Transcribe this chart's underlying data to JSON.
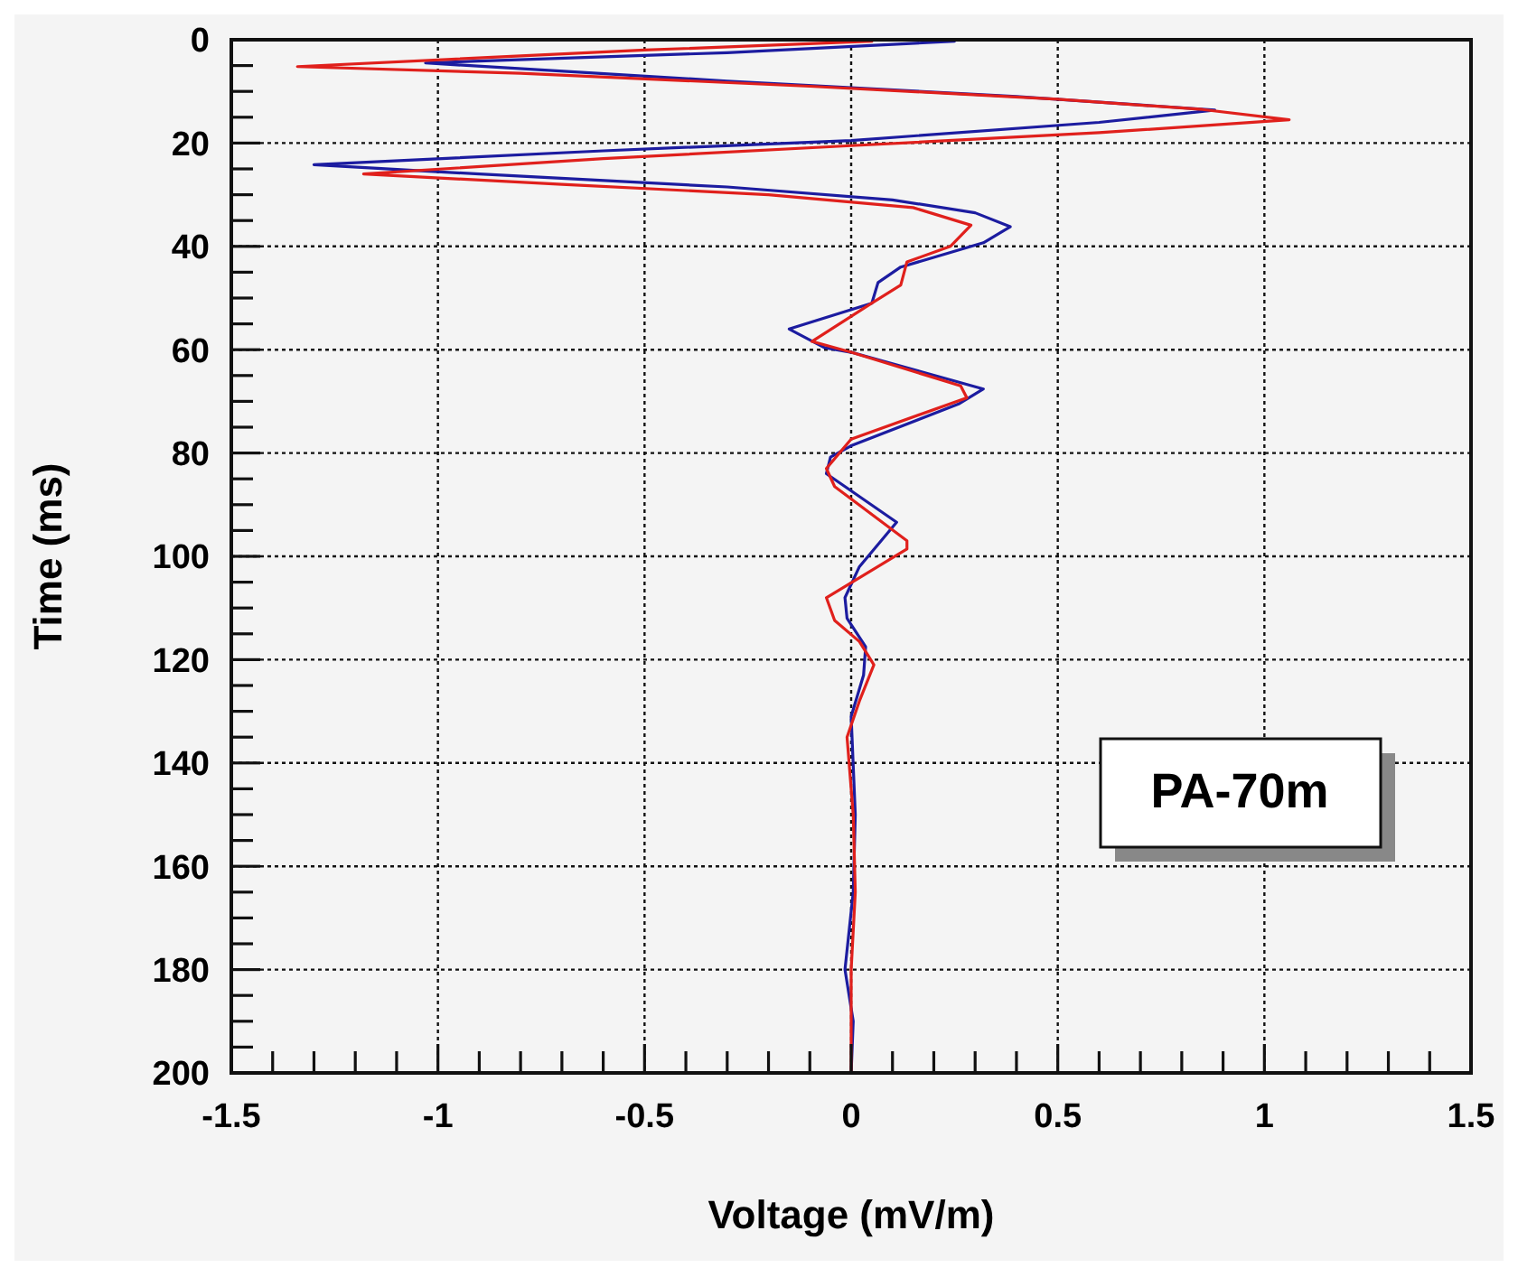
{
  "chart_data": {
    "type": "line",
    "orientation": "horizontal",
    "xlabel": "Voltage (mV/m)",
    "ylabel": "Time (ms)",
    "annotations": [
      "PA-70m"
    ],
    "xlim": [
      -1.5,
      1.5
    ],
    "xticks": [
      -1.5,
      {
        "value": -1.4,
        "label": null
      },
      {
        "value": -1.3,
        "label": null
      },
      {
        "value": -1.2,
        "label": null
      },
      {
        "value": -1.1,
        "label": null
      },
      -1,
      {
        "value": -0.9,
        "label": null
      },
      {
        "value": -0.8,
        "label": null
      },
      {
        "value": -0.7,
        "label": null
      },
      {
        "value": -0.6,
        "label": null
      },
      -0.5,
      {
        "value": -0.4,
        "label": null
      },
      {
        "value": -0.3,
        "label": null
      },
      {
        "value": -0.2,
        "label": null
      },
      {
        "value": -0.1,
        "label": null
      },
      0,
      {
        "value": 0.1,
        "label": null
      },
      {
        "value": 0.2,
        "label": null
      },
      {
        "value": 0.3,
        "label": null
      },
      {
        "value": 0.4,
        "label": null
      },
      0.5,
      {
        "value": 0.6,
        "label": null
      },
      {
        "value": 0.7,
        "label": null
      },
      {
        "value": 0.8,
        "label": null
      },
      {
        "value": 0.9,
        "label": null
      },
      1,
      {
        "value": 1.1,
        "label": null
      },
      {
        "value": 1.2,
        "label": null
      },
      {
        "value": 1.3,
        "label": null
      },
      {
        "value": 1.4,
        "label": null
      },
      1.5
    ],
    "ylim": [
      200,
      0
    ],
    "yticks": [
      0,
      {
        "value": 5,
        "label": null
      },
      {
        "value": 10,
        "label": null
      },
      {
        "value": 15,
        "label": null
      },
      20,
      {
        "value": 25,
        "label": null
      },
      {
        "value": 30,
        "label": null
      },
      {
        "value": 35,
        "label": null
      },
      40,
      {
        "value": 45,
        "label": null
      },
      {
        "value": 50,
        "label": null
      },
      {
        "value": 55,
        "label": null
      },
      60,
      {
        "value": 65,
        "label": null
      },
      {
        "value": 70,
        "label": null
      },
      {
        "value": 75,
        "label": null
      },
      80,
      {
        "value": 85,
        "label": null
      },
      {
        "value": 90,
        "label": null
      },
      {
        "value": 95,
        "label": null
      },
      100,
      {
        "value": 105,
        "label": null
      },
      {
        "value": 110,
        "label": null
      },
      {
        "value": 115,
        "label": null
      },
      120,
      {
        "value": 125,
        "label": null
      },
      {
        "value": 130,
        "label": null
      },
      {
        "value": 135,
        "label": null
      },
      140,
      {
        "value": 145,
        "label": null
      },
      {
        "value": 150,
        "label": null
      },
      {
        "value": 155,
        "label": null
      },
      160,
      {
        "value": 165,
        "label": null
      },
      {
        "value": 170,
        "label": null
      },
      {
        "value": 175,
        "label": null
      },
      180,
      {
        "value": 185,
        "label": null
      },
      {
        "value": 190,
        "label": null
      },
      {
        "value": 195,
        "label": null
      },
      200
    ],
    "grid": true,
    "line_style": "solid",
    "marker": "none",
    "series": [
      {
        "color": "#1c1ca0",
        "x": [
          0.3,
          2.5,
          4.5,
          8,
          11,
          13.6,
          16,
          19.5,
          21.5,
          24.2,
          26,
          28.5,
          31,
          33.5,
          36.2,
          39.3,
          44,
          47,
          51,
          56,
          59.6,
          60.5,
          67.6,
          70.5,
          78.6,
          80.8,
          84,
          93.4,
          102,
          108,
          112,
          117.5,
          123,
          131,
          150,
          165,
          180,
          190,
          200
        ],
        "values": [
          0.25,
          -0.3,
          -1.03,
          -0.3,
          0.4,
          0.88,
          0.6,
          0,
          -0.6,
          -1.3,
          -0.9,
          -0.3,
          0.1,
          0.3,
          0.385,
          0.32,
          0.12,
          0.065,
          0.05,
          -0.15,
          -0.065,
          0,
          0.32,
          0.26,
          0,
          -0.05,
          -0.06,
          0.11,
          0.02,
          -0.015,
          -0.01,
          0.035,
          0.03,
          0,
          0.01,
          0.005,
          -0.015,
          0.005,
          0
        ]
      },
      {
        "color": "#e0201c",
        "x": [
          0.3,
          2,
          5.2,
          6.5,
          9,
          11.5,
          13.5,
          15.5,
          18,
          20.5,
          23,
          26,
          28,
          30,
          32.5,
          35.9,
          40,
          43,
          47.5,
          51,
          58.4,
          60.5,
          67,
          69.3,
          77.3,
          83,
          86.5,
          97,
          98.6,
          108,
          112.4,
          116.5,
          121,
          128,
          135,
          150,
          165,
          180,
          200
        ],
        "values": [
          0.05,
          -0.5,
          -1.34,
          -0.8,
          -0.1,
          0.5,
          0.85,
          1.06,
          0.6,
          0,
          -0.6,
          -1.18,
          -0.7,
          -0.2,
          0.15,
          0.29,
          0.24,
          0.135,
          0.12,
          0.05,
          -0.095,
          0,
          0.265,
          0.28,
          0,
          -0.06,
          -0.04,
          0.135,
          0.135,
          -0.06,
          -0.04,
          0.02,
          0.055,
          0.02,
          -0.01,
          0.005,
          0.01,
          0,
          0
        ]
      }
    ]
  }
}
